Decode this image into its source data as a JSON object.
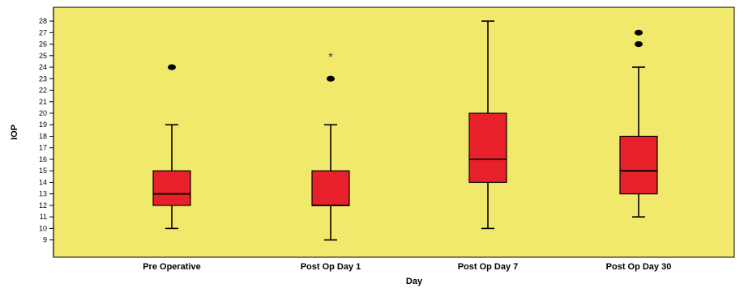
{
  "chart_data": {
    "type": "boxplot",
    "xlabel": "Day",
    "ylabel": "IOP",
    "ylim": [
      7.5,
      29.2
    ],
    "yticks": [
      9,
      10,
      11,
      12,
      13,
      14,
      15,
      16,
      17,
      18,
      19,
      20,
      21,
      22,
      23,
      24,
      25,
      26,
      27,
      28
    ],
    "grid": false,
    "colors": {
      "plot_background": "#f0e96c",
      "box_fill": "#e8202a",
      "line": "#000000"
    },
    "categories": [
      "Pre Operative",
      "Post Op Day 1",
      "Post Op Day 7",
      "Post Op Day 30"
    ],
    "boxes": [
      {
        "category": "Pre Operative",
        "whisker_low": 10,
        "q1": 12,
        "median": 13,
        "q3": 15,
        "whisker_high": 19,
        "outliers": [
          24
        ],
        "extremes": []
      },
      {
        "category": "Post Op Day 1",
        "whisker_low": 9,
        "q1": 12,
        "median": 12,
        "q3": 15,
        "whisker_high": 19,
        "outliers": [
          23
        ],
        "extremes": [
          25
        ]
      },
      {
        "category": "Post Op Day 7",
        "whisker_low": 10,
        "q1": 14,
        "median": 16,
        "q3": 20,
        "whisker_high": 28,
        "outliers": [],
        "extremes": []
      },
      {
        "category": "Post Op Day 30",
        "whisker_low": 11,
        "q1": 13,
        "median": 15,
        "q3": 18,
        "whisker_high": 24,
        "outliers": [
          26,
          27
        ],
        "extremes": []
      }
    ]
  }
}
